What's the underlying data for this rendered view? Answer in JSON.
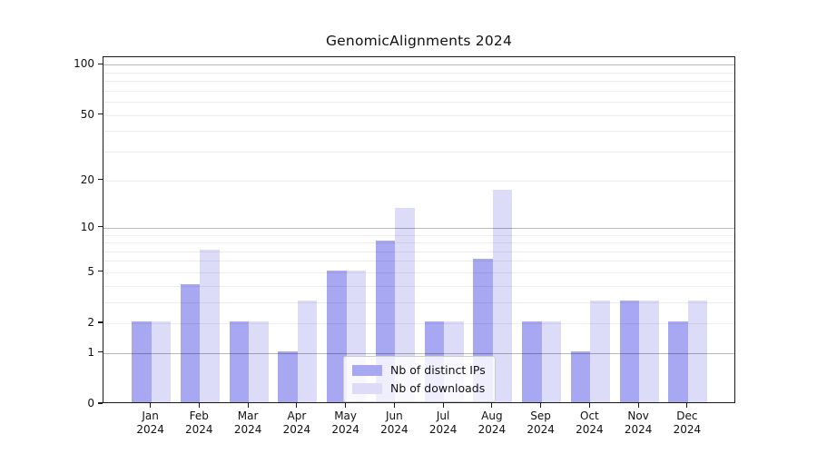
{
  "chart_data": {
    "type": "bar",
    "title": "GenomicAlignments 2024",
    "categories": [
      "Jan",
      "Feb",
      "Mar",
      "Apr",
      "May",
      "Jun",
      "Jul",
      "Aug",
      "Sep",
      "Oct",
      "Nov",
      "Dec"
    ],
    "category_year": "2024",
    "series": [
      {
        "name": "Nb of distinct IPs",
        "color": "#a8a8f2",
        "values": [
          2,
          4,
          2,
          1,
          5,
          8,
          2,
          6,
          2,
          1,
          3,
          2
        ]
      },
      {
        "name": "Nb of downloads",
        "color": "#dcdcf9",
        "values": [
          2,
          7,
          2,
          3,
          5,
          13,
          2,
          17,
          2,
          3,
          3,
          3
        ]
      }
    ],
    "yscale": "log1p",
    "ylim": [
      0,
      100
    ],
    "ytick_labels": [
      "100",
      "50",
      "20",
      "10",
      "5",
      "2",
      "1",
      "0"
    ],
    "ytick_values": [
      100,
      50,
      20,
      10,
      5,
      2,
      1,
      0
    ],
    "major_gridlines": [
      1,
      10,
      100
    ],
    "minor_gridlines": [
      2,
      3,
      4,
      5,
      6,
      7,
      8,
      9,
      20,
      30,
      40,
      50,
      60,
      70,
      80,
      90
    ],
    "xlabel": "",
    "ylabel": "",
    "grid": "on",
    "legend_position": "lower center"
  }
}
